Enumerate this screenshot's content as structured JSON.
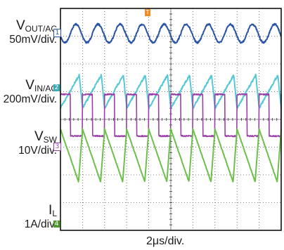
{
  "chart_data": {
    "type": "line",
    "x_unit": "µs",
    "timebase": "2μs/div.",
    "x_range": [
      0,
      20
    ],
    "channels": [
      {
        "id": "1",
        "label_main": "V",
        "label_sub": "OUT/AC",
        "scale": "50mV/div.",
        "color": "#2a55a6",
        "waveform": "sine",
        "cycles": 10,
        "amplitude_div": 0.33,
        "baseline_div": 0.9
      },
      {
        "id": "2",
        "label_main": "V",
        "label_sub": "IN/AC",
        "scale": "200mV/div.",
        "color": "#55c8d8",
        "waveform": "sawtooth_rise",
        "cycles": 10,
        "amplitude_div": 0.6,
        "baseline_div": 3.0
      },
      {
        "id": "3",
        "label_main": "V",
        "label_sub": "SW",
        "scale": "10V/div.",
        "color": "#9a3fa8",
        "waveform": "pulse",
        "cycles": 10,
        "duty": 0.45,
        "low_div": 4.6,
        "high_div": 3.1
      },
      {
        "id": "4",
        "label_main": "I",
        "label_sub": "L",
        "scale": "1A/div.",
        "color": "#6cc04a",
        "waveform": "triangle_fall",
        "cycles": 10,
        "amplitude_div": 0.95,
        "baseline_div": 5.3
      }
    ],
    "grid": true,
    "divisions": {
      "x": 10,
      "y": 8
    },
    "trigger_marker": "T"
  }
}
